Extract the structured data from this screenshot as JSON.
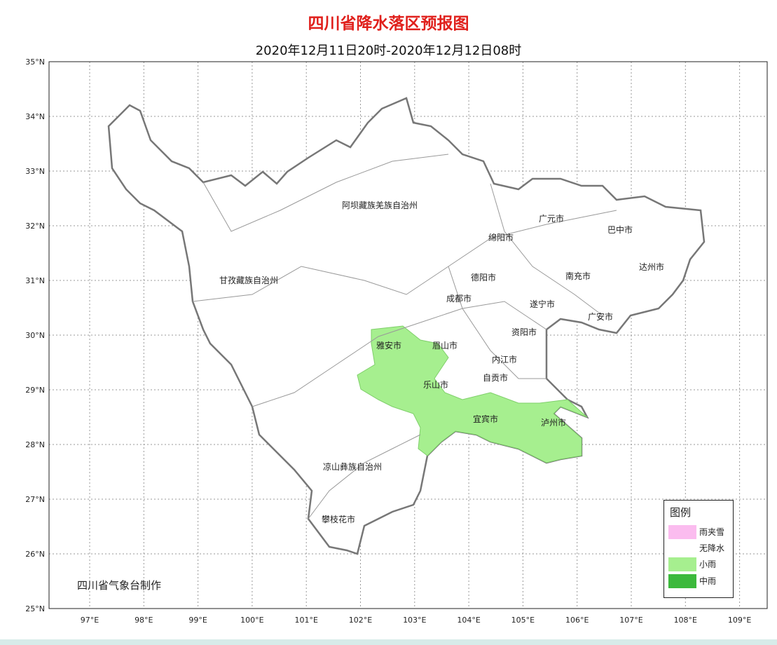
{
  "title": "四川省降水落区预报图",
  "subtitle": "2020年12月11日20时-2020年12月12日08时",
  "axes": {
    "lat_labels": [
      "35°N",
      "34°N",
      "33°N",
      "32°N",
      "31°N",
      "30°N",
      "29°N",
      "28°N",
      "27°N",
      "26°N",
      "25°N"
    ],
    "lon_labels": [
      "97°E",
      "98°E",
      "99°E",
      "100°E",
      "101°E",
      "102°E",
      "103°E",
      "104°E",
      "105°E",
      "106°E",
      "107°E",
      "108°E",
      "109°E"
    ]
  },
  "regions": [
    "阿坝藏族羌族自治州",
    "甘孜藏族自治州",
    "凉山彝族自治州",
    "攀枝花市",
    "雅安市",
    "眉山市",
    "乐山市",
    "成都市",
    "德阳市",
    "绵阳市",
    "广元市",
    "巴中市",
    "达州市",
    "南充市",
    "遂宁市",
    "广安市",
    "资阳市",
    "内江市",
    "自贡市",
    "宜宾市",
    "泸州市"
  ],
  "legend": {
    "title": "图例",
    "items": [
      {
        "label": "雨夹雪",
        "color": "#fbbcef"
      },
      {
        "label": "无降水",
        "color": "#ffffff"
      },
      {
        "label": "小雨",
        "color": "#a6ef8f"
      },
      {
        "label": "中雨",
        "color": "#3cb93c"
      }
    ]
  },
  "footer": "四川省气象台制作",
  "colors": {
    "title": "#e0201c",
    "light_rain": "#a6ef8f",
    "border": "#777777"
  }
}
